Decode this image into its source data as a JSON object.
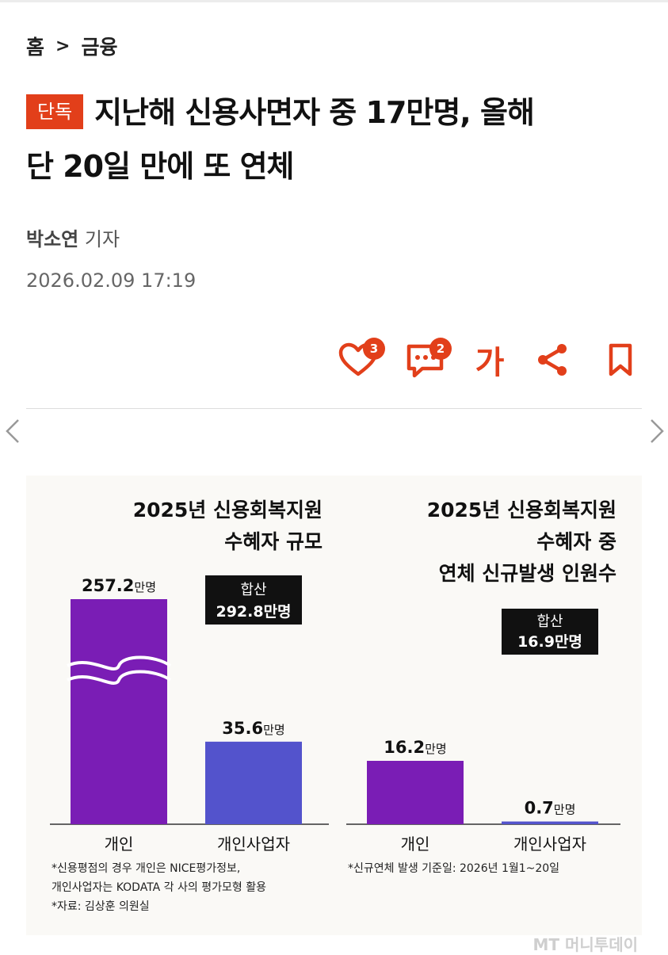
{
  "breadcrumb": {
    "home": "홈",
    "separator": ">",
    "category": "금융"
  },
  "article": {
    "badge": "단독",
    "headline_line1": "지난해 신용사면자 중 17만명, 올해",
    "headline_line2": "단 20일 만에 또 연체",
    "author_name": "박소연",
    "author_role": "기자",
    "date": "2026.02.09 17:19"
  },
  "actions": {
    "like_count": "3",
    "comment_count": "2",
    "font_label": "가",
    "accent_color": "#e23f1a"
  },
  "chart_data": [
    {
      "type": "bar",
      "title_line1": "2025년 신용회복지원",
      "title_line2": "수혜자 규모",
      "categories": [
        "개인",
        "개인사업자"
      ],
      "values": [
        257.2,
        35.6
      ],
      "value_labels": [
        "257.2",
        "35.6"
      ],
      "unit": "만명",
      "total_label": "합산",
      "total_value": "292.8만명",
      "axis_break": true,
      "colors": [
        "#7a1db5",
        "#5353cc"
      ],
      "notes": [
        "*신용평점의 경우 개인은 NICE평가정보,",
        "개인사업자는 KODATA 각 사의 평가모형 활용",
        "*자료: 김상훈 의원실"
      ]
    },
    {
      "type": "bar",
      "title_line1": "2025년 신용회복지원",
      "title_line2": "수혜자 중",
      "title_line3": "연체 신규발생 인원수",
      "categories": [
        "개인",
        "개인사업자"
      ],
      "values": [
        16.2,
        0.7
      ],
      "value_labels": [
        "16.2",
        "0.7"
      ],
      "unit": "만명",
      "total_label": "합산",
      "total_value": "16.9만명",
      "colors": [
        "#7a1db5",
        "#5353cc"
      ],
      "notes": [
        "*신규연체 발생 기준일: 2026년 1월1~20일"
      ]
    }
  ],
  "watermark": "MT 머니투데이"
}
